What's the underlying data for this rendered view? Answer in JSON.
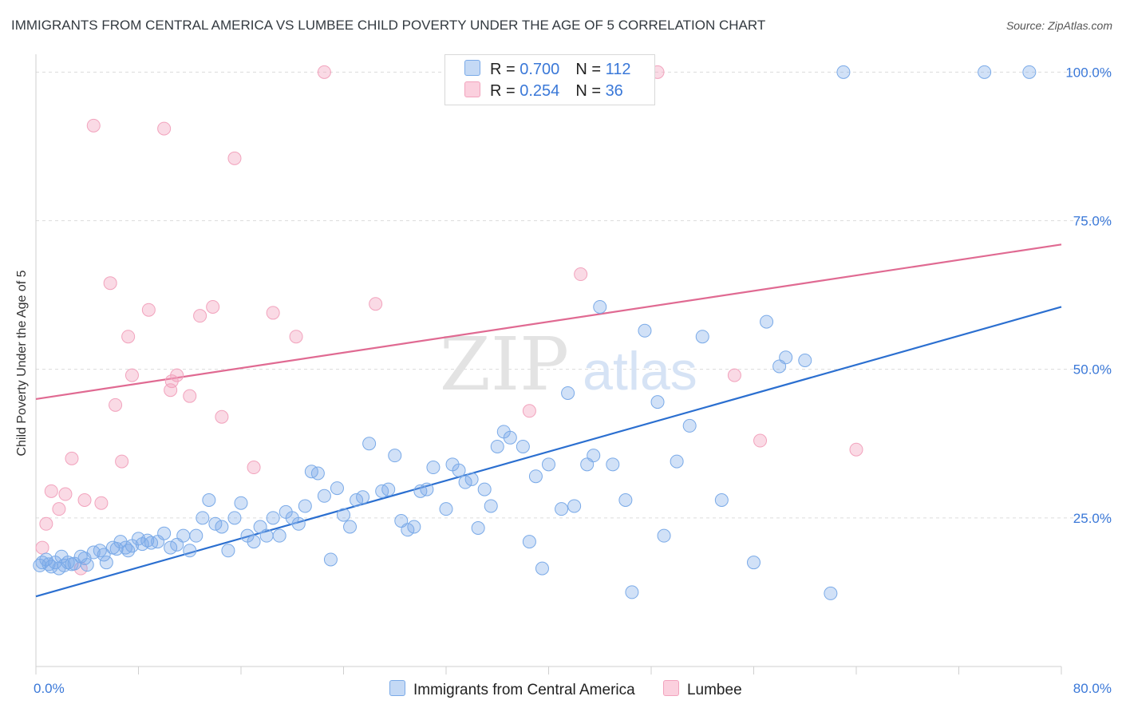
{
  "title": "IMMIGRANTS FROM CENTRAL AMERICA VS LUMBEE CHILD POVERTY UNDER THE AGE OF 5 CORRELATION CHART",
  "source": "Source: ZipAtlas.com",
  "watermark": {
    "zip": "ZIP",
    "atlas": "atlas"
  },
  "legend": {
    "rows": [
      {
        "r_label": "R = ",
        "r_value": "0.700",
        "n_label": "N = ",
        "n_value": "112"
      },
      {
        "r_label": "R = ",
        "r_value": "0.254",
        "n_label": "N = ",
        "n_value": "36"
      }
    ]
  },
  "chart_data": {
    "type": "scatter",
    "title": "IMMIGRANTS FROM CENTRAL AMERICA VS LUMBEE CHILD POVERTY UNDER THE AGE OF 5 CORRELATION CHART",
    "xlabel": "",
    "ylabel": "Child Poverty Under the Age of 5",
    "xlim": [
      0,
      80
    ],
    "ylim": [
      0,
      103
    ],
    "x_tick_labels": [
      "0.0%",
      "80.0%"
    ],
    "y_ticks": [
      25,
      50,
      75,
      100
    ],
    "y_tick_labels": [
      "25.0%",
      "50.0%",
      "75.0%",
      "100.0%"
    ],
    "grid": true,
    "colors": {
      "blue": "#7aaae8",
      "blue_line": "#2b6fd0",
      "pink": "#f2a3bd",
      "pink_line": "#e06a92",
      "tick_text": "#3a78d8"
    },
    "series": [
      {
        "name": "Immigrants from Central America",
        "r": 0.7,
        "n": 112,
        "trend": {
          "x": [
            0,
            80
          ],
          "y": [
            11.8,
            60.5
          ]
        },
        "points": [
          [
            0.3,
            17
          ],
          [
            0.5,
            17.5
          ],
          [
            0.8,
            18
          ],
          [
            1.0,
            17.2
          ],
          [
            1.2,
            16.8
          ],
          [
            1.5,
            17.5
          ],
          [
            1.8,
            16.5
          ],
          [
            2.0,
            18.5
          ],
          [
            2.2,
            17
          ],
          [
            2.5,
            17.5
          ],
          [
            2.8,
            17.2
          ],
          [
            3.0,
            17.3
          ],
          [
            3.5,
            18.5
          ],
          [
            3.8,
            18.2
          ],
          [
            4.0,
            17.1
          ],
          [
            4.5,
            19.2
          ],
          [
            5.0,
            19.5
          ],
          [
            5.3,
            18.8
          ],
          [
            5.5,
            17.5
          ],
          [
            6.0,
            20
          ],
          [
            6.3,
            19.8
          ],
          [
            6.6,
            21
          ],
          [
            7.0,
            20
          ],
          [
            7.2,
            19.5
          ],
          [
            7.5,
            20.3
          ],
          [
            8.0,
            21.5
          ],
          [
            8.3,
            20.6
          ],
          [
            8.7,
            21.2
          ],
          [
            9.0,
            20.8
          ],
          [
            9.5,
            21
          ],
          [
            10.0,
            22.4
          ],
          [
            10.5,
            20
          ],
          [
            11.0,
            20.5
          ],
          [
            11.5,
            22
          ],
          [
            12.0,
            19.5
          ],
          [
            12.5,
            22
          ],
          [
            13.0,
            25
          ],
          [
            13.5,
            28
          ],
          [
            14.0,
            24
          ],
          [
            14.5,
            23.5
          ],
          [
            15.0,
            19.5
          ],
          [
            15.5,
            25
          ],
          [
            16.0,
            27.5
          ],
          [
            16.5,
            22
          ],
          [
            17.0,
            21
          ],
          [
            17.5,
            23.5
          ],
          [
            18.0,
            22
          ],
          [
            18.5,
            25
          ],
          [
            19.0,
            22
          ],
          [
            19.5,
            26
          ],
          [
            20.0,
            25
          ],
          [
            20.5,
            24
          ],
          [
            21.0,
            27
          ],
          [
            21.5,
            32.8
          ],
          [
            22.0,
            32.5
          ],
          [
            22.5,
            28.7
          ],
          [
            23.0,
            18
          ],
          [
            23.5,
            30
          ],
          [
            24.0,
            25.5
          ],
          [
            24.5,
            23.5
          ],
          [
            25.0,
            28
          ],
          [
            25.5,
            28.5
          ],
          [
            26.0,
            37.5
          ],
          [
            27.0,
            29.5
          ],
          [
            27.5,
            29.8
          ],
          [
            28.0,
            35.5
          ],
          [
            28.5,
            24.5
          ],
          [
            29.0,
            23
          ],
          [
            29.5,
            23.5
          ],
          [
            30.0,
            29.5
          ],
          [
            30.5,
            29.8
          ],
          [
            31.0,
            33.5
          ],
          [
            32.0,
            26.5
          ],
          [
            32.5,
            34
          ],
          [
            33.0,
            33
          ],
          [
            33.5,
            31
          ],
          [
            34.0,
            31.5
          ],
          [
            34.5,
            23.3
          ],
          [
            35.0,
            29.8
          ],
          [
            35.5,
            27
          ],
          [
            36.0,
            37
          ],
          [
            36.5,
            39.5
          ],
          [
            37.0,
            38.5
          ],
          [
            38.0,
            37
          ],
          [
            38.5,
            21
          ],
          [
            39.0,
            32
          ],
          [
            39.5,
            16.5
          ],
          [
            40.0,
            34
          ],
          [
            41.0,
            26.5
          ],
          [
            41.5,
            46
          ],
          [
            42.0,
            27
          ],
          [
            43.0,
            34
          ],
          [
            43.5,
            35.5
          ],
          [
            44.0,
            60.5
          ],
          [
            45.0,
            34
          ],
          [
            46.0,
            28
          ],
          [
            46.5,
            12.5
          ],
          [
            47.5,
            56.5
          ],
          [
            48.5,
            44.5
          ],
          [
            49.0,
            22
          ],
          [
            50.0,
            34.5
          ],
          [
            51.0,
            40.5
          ],
          [
            52.0,
            55.5
          ],
          [
            53.5,
            28
          ],
          [
            56.0,
            17.5
          ],
          [
            57.0,
            58
          ],
          [
            58.0,
            50.5
          ],
          [
            58.5,
            52
          ],
          [
            60.0,
            51.5
          ],
          [
            62.0,
            12.3
          ],
          [
            63.0,
            100
          ],
          [
            74.0,
            100
          ],
          [
            77.5,
            100
          ]
        ]
      },
      {
        "name": "Lumbee",
        "r": 0.254,
        "n": 36,
        "trend": {
          "x": [
            0,
            80
          ],
          "y": [
            45,
            71
          ]
        },
        "points": [
          [
            0.5,
            20
          ],
          [
            0.8,
            24
          ],
          [
            1.2,
            29.5
          ],
          [
            1.8,
            26.5
          ],
          [
            2.3,
            29
          ],
          [
            2.8,
            35
          ],
          [
            3.5,
            16.5
          ],
          [
            3.8,
            28
          ],
          [
            4.5,
            91
          ],
          [
            5.1,
            27.5
          ],
          [
            5.8,
            64.5
          ],
          [
            6.2,
            44
          ],
          [
            6.7,
            34.5
          ],
          [
            7.2,
            55.5
          ],
          [
            8.8,
            60
          ],
          [
            10.0,
            90.5
          ],
          [
            10.5,
            46.5
          ],
          [
            10.6,
            48
          ],
          [
            11.0,
            49
          ],
          [
            12.0,
            45.5
          ],
          [
            12.8,
            59
          ],
          [
            13.8,
            60.5
          ],
          [
            14.5,
            42
          ],
          [
            15.5,
            85.5
          ],
          [
            17.0,
            33.5
          ],
          [
            18.5,
            59.5
          ],
          [
            20.3,
            55.5
          ],
          [
            22.5,
            100
          ],
          [
            26.5,
            61
          ],
          [
            38.5,
            43
          ],
          [
            42.5,
            66
          ],
          [
            48.5,
            100
          ],
          [
            54.5,
            49
          ],
          [
            56.5,
            38
          ],
          [
            64.0,
            36.5
          ],
          [
            7.5,
            49
          ]
        ]
      }
    ]
  },
  "bottom_legend": [
    "Immigrants from Central America",
    "Lumbee"
  ]
}
